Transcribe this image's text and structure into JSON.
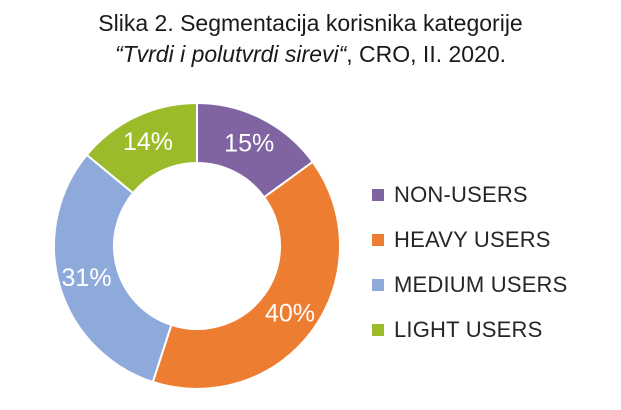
{
  "title": {
    "line1": "Slika 2. Segmentacija korisnika kategorije",
    "line2_italic": "“Tvrdi i polutvrdi sirevi“",
    "line2_rest": ", CRO, II. 2020."
  },
  "chart_data": {
    "type": "pie",
    "variant": "donut",
    "categories": [
      "NON-USERS",
      "HEAVY USERS",
      "MEDIUM USERS",
      "LIGHT USERS"
    ],
    "values": [
      15,
      40,
      31,
      14
    ],
    "data_labels": [
      "15%",
      "40%",
      "31%",
      "14%"
    ],
    "colors": [
      "#8064A2",
      "#ED7D31",
      "#8EAADB",
      "#9BBB2B"
    ],
    "start_angle_deg": 0,
    "direction": "clockwise",
    "legend_position": "right"
  },
  "legend": {
    "items": [
      {
        "label": "NON-USERS",
        "color": "#8064A2"
      },
      {
        "label": "HEAVY USERS",
        "color": "#ED7D31"
      },
      {
        "label": "MEDIUM USERS",
        "color": "#8EAADB"
      },
      {
        "label": "LIGHT USERS",
        "color": "#9BBB2B"
      }
    ]
  }
}
